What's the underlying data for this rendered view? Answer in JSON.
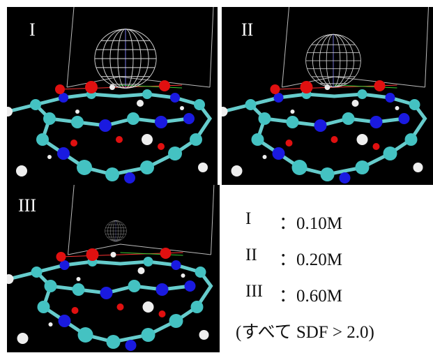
{
  "panels": [
    {
      "label": "I"
    },
    {
      "label": "II"
    },
    {
      "label": "III"
    }
  ],
  "legend": {
    "rows": [
      {
        "key": "I",
        "value": "：0.10M"
      },
      {
        "key": "II",
        "value": "：0.20M"
      },
      {
        "key": "III",
        "value": "：0.60M"
      }
    ],
    "note": "(すべて SDF > 2.0)"
  }
}
